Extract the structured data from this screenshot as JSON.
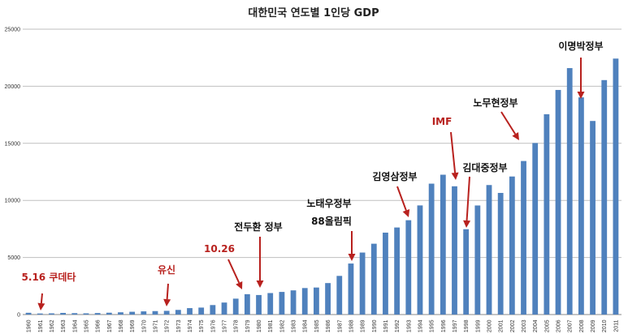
{
  "chart_data": {
    "type": "bar",
    "title": "대한민국 연도별 1인당 GDP",
    "xlabel": "",
    "ylabel": "",
    "ylim": [
      0,
      25000
    ],
    "yticks": [
      0,
      5000,
      10000,
      15000,
      20000,
      25000
    ],
    "grid": true,
    "categories": [
      "1960",
      "1961",
      "1962",
      "1963",
      "1964",
      "1965",
      "1966",
      "1967",
      "1968",
      "1969",
      "1970",
      "1971",
      "1972",
      "1973",
      "1974",
      "1975",
      "1976",
      "1977",
      "1978",
      "1979",
      "1980",
      "1981",
      "1982",
      "1983",
      "1984",
      "1985",
      "1986",
      "1987",
      "1988",
      "1989",
      "1990",
      "1991",
      "1992",
      "1993",
      "1994",
      "1995",
      "1996",
      "1997",
      "1998",
      "1999",
      "2000",
      "2001",
      "2002",
      "2003",
      "2004",
      "2005",
      "2006",
      "2007",
      "2008",
      "2009",
      "2010",
      "2011"
    ],
    "values": [
      155,
      93,
      106,
      144,
      124,
      108,
      133,
      161,
      198,
      243,
      279,
      301,
      324,
      406,
      563,
      610,
      831,
      1051,
      1393,
      1784,
      1711,
      1883,
      1982,
      2118,
      2322,
      2367,
      2758,
      3386,
      4469,
      5431,
      6205,
      7176,
      7627,
      8264,
      9560,
      11467,
      12250,
      11237,
      7477,
      9555,
      11346,
      10655,
      12094,
      13451,
      15029,
      17551,
      19676,
      21590,
      19028,
      16959,
      20540,
      22424
    ],
    "annotations": [
      {
        "text": "5.16 쿠데타",
        "color": "#b8211e",
        "year": "1961"
      },
      {
        "text": "유신",
        "color": "#b8211e",
        "year": "1972"
      },
      {
        "text": "10.26",
        "color": "#b8211e",
        "year": "1979"
      },
      {
        "text": "전두환 정부",
        "color": "#111111",
        "year": "1980"
      },
      {
        "text": "노태우정부",
        "color": "#111111",
        "year": "1988"
      },
      {
        "text": "88올림픽",
        "color": "#111111",
        "year": "1988"
      },
      {
        "text": "김영삼정부",
        "color": "#111111",
        "year": "1993"
      },
      {
        "text": "IMF",
        "color": "#b8211e",
        "year": "1997"
      },
      {
        "text": "김대중정부",
        "color": "#111111",
        "year": "1998"
      },
      {
        "text": "노무현정부",
        "color": "#111111",
        "year": "2003"
      },
      {
        "text": "이명박정부",
        "color": "#111111",
        "year": "2008"
      }
    ],
    "bar_color": "#4f81bd"
  }
}
